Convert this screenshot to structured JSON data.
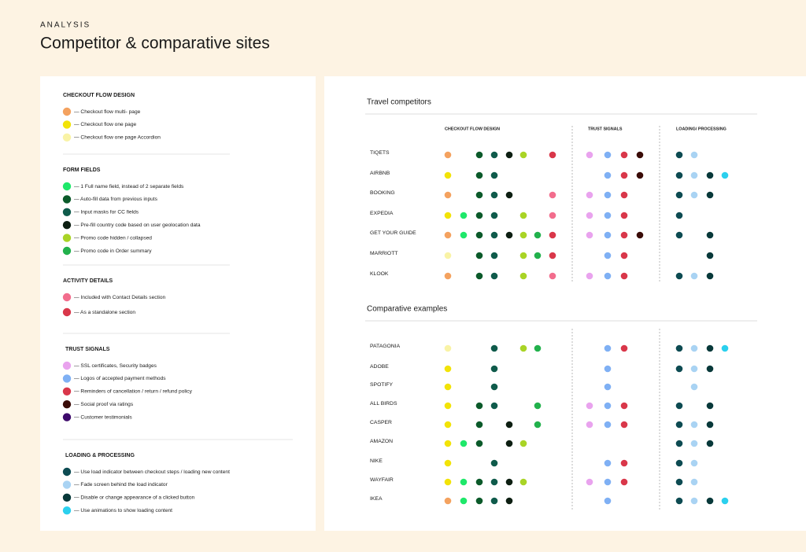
{
  "header": {
    "eyebrow": "ANALYSIS",
    "title": "Competitor & comparative sites"
  },
  "legend": [
    {
      "title": "CHECKOUT FLOW DESIGN",
      "items": [
        {
          "label": "— Checkout flow multi- page",
          "color": "#f4a25f"
        },
        {
          "label": "— Checkout flow one page",
          "color": "#f2e307"
        },
        {
          "label": "— Checkout flow one page Accordion",
          "color": "#f9f3a6"
        }
      ]
    },
    {
      "title": "FORM FIELDS",
      "items": [
        {
          "label": "— 1 Full name field, instead of 2 separate fields",
          "color": "#1ee86a"
        },
        {
          "label": "— Auto-fill data from previous inputs",
          "color": "#0b5a2a"
        },
        {
          "label": "— Input masks for CC fields",
          "color": "#0f5b4b"
        },
        {
          "label": "— Pre-fill country code based on user geolocation data",
          "color": "#0d1f12"
        },
        {
          "label": "— Promo code hidden / collapsed",
          "color": "#a9d426"
        },
        {
          "label": "— Promo code in Order summary",
          "color": "#22b14c"
        }
      ]
    },
    {
      "title": "ACTIVITY DETAILS",
      "items": [
        {
          "label": "— Included with Contact Details section",
          "color": "#f26d8d"
        },
        {
          "label": "— As a standalone section",
          "color": "#d9374a"
        }
      ]
    },
    {
      "title": "TRUST SIGNALS",
      "items": [
        {
          "label": "— SSL certificates, Security badges",
          "color": "#e9a3ee"
        },
        {
          "label": "— Logos of accepted payment methods",
          "color": "#7fb0f4"
        },
        {
          "label": "— Reminders of cancellation / return / refund policy",
          "color": "#d9374a"
        },
        {
          "label": "— Social proof via ratings",
          "color": "#3a0c08"
        },
        {
          "label": "— Customer testimonials",
          "color": "#3d0a6b"
        }
      ]
    },
    {
      "title": "LOADING & PROCESSING",
      "items": [
        {
          "label": "— Use load indicator between checkout steps / loading new content",
          "color": "#0d4b52"
        },
        {
          "label": "— Fade screen behind the load indicator",
          "color": "#a9d3f3"
        },
        {
          "label": "— Disable or change appearance of a clicked button",
          "color": "#08393a"
        },
        {
          "label": "— Use animations to show loading content",
          "color": "#2bd0ee"
        }
      ]
    }
  ],
  "columns": [
    "CHECKOUT FLOW DESIGN",
    "TRUST SIGNALS",
    "LOADING/ PROCESSING"
  ],
  "groups": [
    {
      "title": "Travel competitors",
      "rows": [
        {
          "name": "TIQETS",
          "dots": [
            "#f4a25f",
            null,
            "#0b5a2a",
            "#0f5b4b",
            "#0d1f12",
            "#a9d426",
            null,
            "#d9374a",
            "#e9a3ee",
            "#7fb0f4",
            "#d9374a",
            "#3a0c08",
            "#0d4b52",
            "#a9d3f3",
            null,
            null
          ]
        },
        {
          "name": "AIRBNB",
          "dots": [
            "#f2e307",
            null,
            "#0b5a2a",
            "#0f5b4b",
            null,
            null,
            null,
            null,
            null,
            "#7fb0f4",
            "#d9374a",
            "#3a0c08",
            "#0d4b52",
            "#a9d3f3",
            "#08393a",
            "#2bd0ee"
          ]
        },
        {
          "name": "BOOKING",
          "dots": [
            "#f4a25f",
            null,
            "#0b5a2a",
            "#0f5b4b",
            "#0d1f12",
            null,
            null,
            "#f26d8d",
            "#e9a3ee",
            "#7fb0f4",
            "#d9374a",
            null,
            "#0d4b52",
            "#a9d3f3",
            "#08393a",
            null
          ]
        },
        {
          "name": "EXPEDIA",
          "dots": [
            "#f2e307",
            "#1ee86a",
            "#0b5a2a",
            "#0f5b4b",
            null,
            "#a9d426",
            null,
            "#f26d8d",
            "#e9a3ee",
            "#7fb0f4",
            "#d9374a",
            null,
            "#0d4b52",
            null,
            null,
            null
          ]
        },
        {
          "name": "GET YOUR GUIDE",
          "dots": [
            "#f4a25f",
            "#1ee86a",
            "#0b5a2a",
            "#0f5b4b",
            "#0d1f12",
            "#a9d426",
            "#22b14c",
            "#d9374a",
            "#e9a3ee",
            "#7fb0f4",
            "#d9374a",
            "#3a0c08",
            "#0d4b52",
            null,
            "#08393a",
            null
          ]
        },
        {
          "name": "MARRIOTT",
          "dots": [
            "#f9f3a6",
            null,
            "#0b5a2a",
            "#0f5b4b",
            null,
            "#a9d426",
            "#22b14c",
            "#d9374a",
            null,
            "#7fb0f4",
            "#d9374a",
            null,
            null,
            null,
            "#08393a",
            null
          ]
        },
        {
          "name": "KLOOK",
          "dots": [
            "#f4a25f",
            null,
            "#0b5a2a",
            "#0f5b4b",
            null,
            "#a9d426",
            null,
            "#f26d8d",
            "#e9a3ee",
            "#7fb0f4",
            "#d9374a",
            null,
            "#0d4b52",
            "#a9d3f3",
            "#08393a",
            null
          ]
        }
      ]
    },
    {
      "title": "Comparative examples",
      "rows": [
        {
          "name": "PATAGONIA",
          "dots": [
            "#f9f3a6",
            null,
            null,
            "#0f5b4b",
            null,
            "#a9d426",
            "#22b14c",
            null,
            null,
            "#7fb0f4",
            "#d9374a",
            null,
            "#0d4b52",
            "#a9d3f3",
            "#08393a",
            "#2bd0ee"
          ]
        },
        {
          "name": "ADOBE",
          "dots": [
            "#f2e307",
            null,
            null,
            "#0f5b4b",
            null,
            null,
            null,
            null,
            null,
            "#7fb0f4",
            null,
            null,
            "#0d4b52",
            "#a9d3f3",
            "#08393a",
            null
          ]
        },
        {
          "name": "SPOTIFY",
          "dots": [
            "#f2e307",
            null,
            null,
            "#0f5b4b",
            null,
            null,
            null,
            null,
            null,
            "#7fb0f4",
            null,
            null,
            null,
            "#a9d3f3",
            null,
            null
          ]
        },
        {
          "name": "ALL BIRDS",
          "dots": [
            "#f2e307",
            null,
            "#0b5a2a",
            "#0f5b4b",
            null,
            null,
            "#22b14c",
            null,
            "#e9a3ee",
            "#7fb0f4",
            "#d9374a",
            null,
            "#0d4b52",
            null,
            "#08393a",
            null
          ]
        },
        {
          "name": "CASPER",
          "dots": [
            "#f2e307",
            null,
            "#0b5a2a",
            null,
            "#0d1f12",
            null,
            "#22b14c",
            null,
            "#e9a3ee",
            "#7fb0f4",
            "#d9374a",
            null,
            "#0d4b52",
            "#a9d3f3",
            "#08393a",
            null
          ]
        },
        {
          "name": "AMAZON",
          "dots": [
            "#f2e307",
            "#1ee86a",
            "#0b5a2a",
            null,
            "#0d1f12",
            "#a9d426",
            null,
            null,
            null,
            null,
            null,
            null,
            "#0d4b52",
            "#a9d3f3",
            "#08393a",
            null
          ]
        },
        {
          "name": "NIKE",
          "dots": [
            "#f2e307",
            null,
            null,
            "#0f5b4b",
            null,
            null,
            null,
            null,
            null,
            "#7fb0f4",
            "#d9374a",
            null,
            "#0d4b52",
            "#a9d3f3",
            null,
            null
          ]
        },
        {
          "name": "WAYFAIR",
          "dots": [
            "#f2e307",
            "#1ee86a",
            "#0b5a2a",
            "#0f5b4b",
            "#0d1f12",
            "#a9d426",
            null,
            null,
            "#e9a3ee",
            "#7fb0f4",
            "#d9374a",
            null,
            "#0d4b52",
            "#a9d3f3",
            null,
            null
          ]
        },
        {
          "name": "IKEA",
          "dots": [
            "#f4a25f",
            "#1ee86a",
            "#0b5a2a",
            "#0f5b4b",
            "#0d1f12",
            null,
            null,
            null,
            null,
            "#7fb0f4",
            null,
            null,
            "#0d4b52",
            "#a9d3f3",
            "#08393a",
            "#2bd0ee"
          ]
        }
      ]
    }
  ]
}
